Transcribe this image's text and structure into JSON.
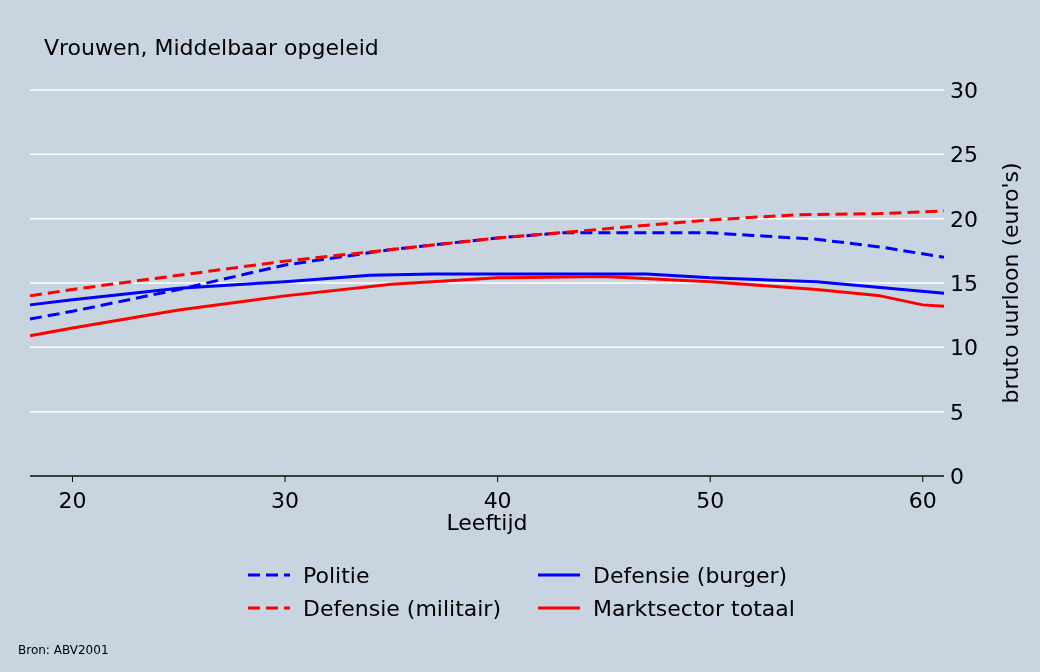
{
  "chart_data": {
    "type": "line",
    "title": "Vrouwen, Middelbaar opgeleid",
    "xlabel": "Leeftijd",
    "ylabel": "bruto uurloon (euro's)",
    "annotations": [
      "Bron: ABV2001"
    ],
    "xlim": [
      18,
      61
    ],
    "xticks": [
      20,
      30,
      40,
      50,
      60
    ],
    "ylim": [
      0,
      30
    ],
    "yticks": [
      0,
      5,
      10,
      15,
      20,
      25,
      30
    ],
    "grid": "y",
    "legend": "bottom",
    "series": [
      {
        "name": "Politie",
        "color": "#0000ff",
        "line_style": "dashed",
        "x": [
          18,
          20,
          25,
          30,
          35,
          40,
          43,
          50,
          52,
          55,
          58,
          61
        ],
        "values": [
          12.2,
          12.8,
          14.5,
          16.4,
          17.6,
          18.5,
          18.9,
          18.9,
          18.7,
          18.4,
          17.8,
          17.0
        ]
      },
      {
        "name": "Defensie (burger)",
        "color": "#0000ff",
        "line_style": "solid",
        "x": [
          18,
          20,
          25,
          30,
          34,
          37,
          47,
          50,
          55,
          61
        ],
        "values": [
          13.3,
          13.7,
          14.6,
          15.1,
          15.6,
          15.7,
          15.7,
          15.4,
          15.1,
          14.2
        ]
      },
      {
        "name": "Defensie (militair)",
        "color": "#ff0000",
        "line_style": "dashed",
        "x": [
          18,
          20,
          25,
          30,
          35,
          40,
          45,
          50,
          54,
          58,
          61
        ],
        "values": [
          14.0,
          14.5,
          15.6,
          16.7,
          17.6,
          18.5,
          19.2,
          19.9,
          20.3,
          20.4,
          20.6
        ]
      },
      {
        "name": "Marktsector totaal",
        "color": "#ff0000",
        "line_style": "solid",
        "x": [
          18,
          20,
          25,
          30,
          35,
          40,
          45,
          50,
          55,
          58,
          60,
          61
        ],
        "values": [
          10.9,
          11.5,
          12.9,
          14.0,
          14.9,
          15.4,
          15.5,
          15.1,
          14.5,
          14.0,
          13.3,
          13.2
        ]
      }
    ]
  }
}
